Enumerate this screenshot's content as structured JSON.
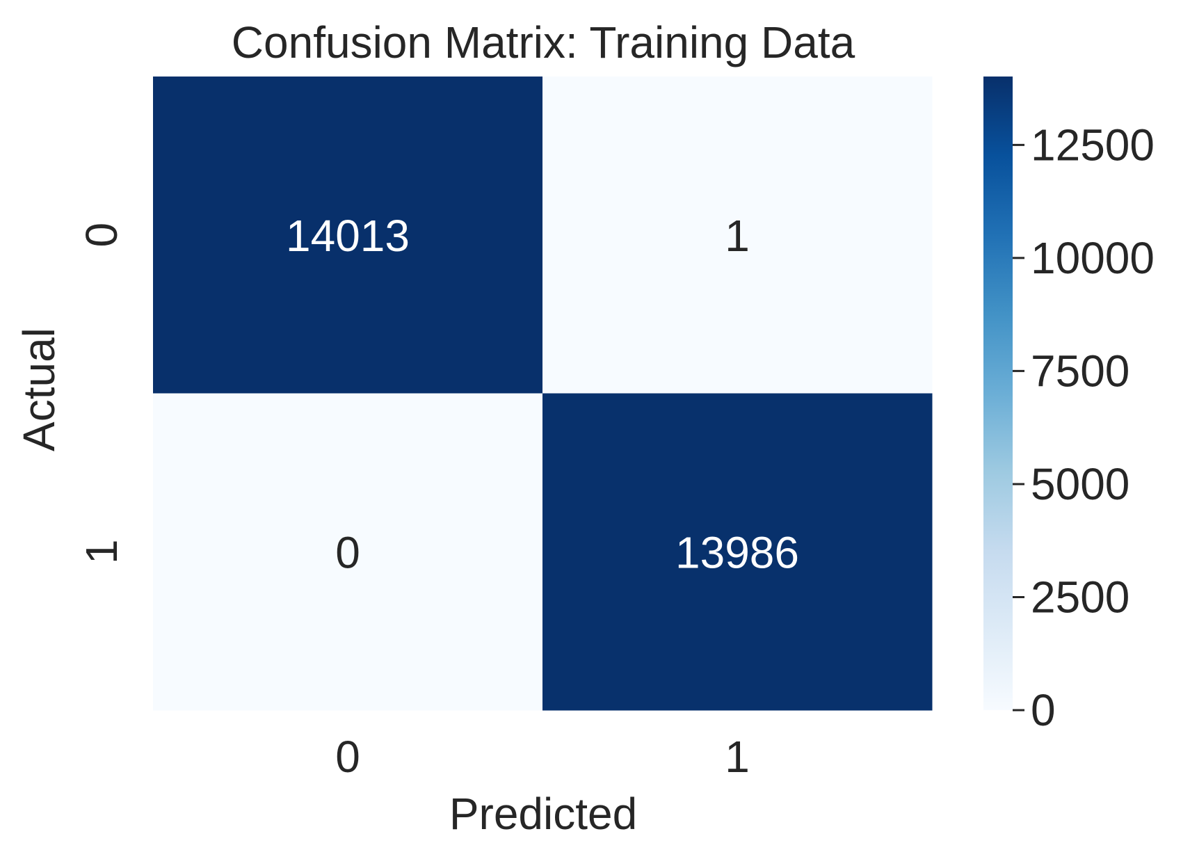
{
  "chart_data": {
    "type": "heatmap",
    "title": "Confusion Matrix: Training Data",
    "xlabel": "Predicted",
    "ylabel": "Actual",
    "x_categories": [
      "0",
      "1"
    ],
    "y_categories": [
      "0",
      "1"
    ],
    "matrix": [
      [
        14013,
        1
      ],
      [
        0,
        13986
      ]
    ],
    "colormap": "Blues",
    "colorbar": {
      "min": 0,
      "max": 14013,
      "ticks": [
        0,
        2500,
        5000,
        7500,
        10000,
        12500
      ]
    },
    "colors": {
      "low": "#f7fbff",
      "high": "#08306b",
      "text_on_dark": "#ffffff",
      "text_on_light": "#262626"
    }
  }
}
